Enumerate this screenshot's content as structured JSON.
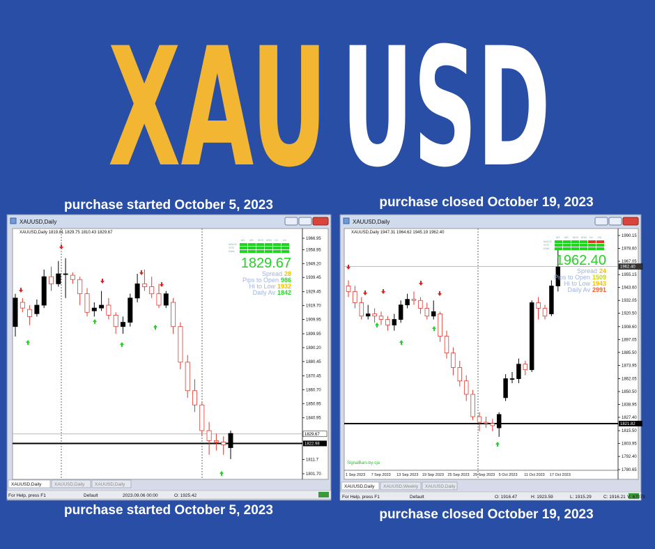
{
  "header": {
    "title_left": "XAU",
    "title_right": "USD"
  },
  "panels": [
    {
      "caption_top": "purchase started October 5, 2023",
      "caption_bottom": "purchase started October 5, 2023",
      "window_title": "XAUUSD,Daily",
      "ohlc_header": "XAUUSD,Daily  1819.81 1829.75 1810.43 1829.67",
      "ylim": [
        1801.7,
        1966.95
      ],
      "yticks": [
        1966.95,
        1958.95,
        {
          "value": 1949.2,
          "label": "1949.20"
        },
        1939.45,
        1929.45,
        {
          "value": 1919.7,
          "label": "1919.70"
        },
        1909.95,
        1899.95,
        {
          "value": 1890.2,
          "label": "1890.20"
        },
        1880.45,
        1870.45,
        {
          "value": 1860.7,
          "label": "1860.70"
        },
        1850.95,
        1840.95,
        1811.7,
        {
          "value": 1801.7,
          "label": "1801.70"
        }
      ],
      "bid_line": 1829.67,
      "level_line": 1822.98,
      "candles": [
        [
          1905,
          1928,
          1898,
          1925
        ],
        [
          1922,
          1925,
          1915,
          1918
        ],
        [
          1917,
          1920,
          1906,
          1912
        ],
        [
          1914,
          1924,
          1912,
          1920
        ],
        [
          1920,
          1945,
          1918,
          1940
        ],
        [
          1940,
          1947,
          1930,
          1935
        ],
        [
          1935,
          1951,
          1933,
          1942
        ],
        [
          1942,
          1953,
          1925,
          1942
        ],
        [
          1941,
          1943,
          1935,
          1938
        ],
        [
          1938,
          1940,
          1920,
          1928
        ],
        [
          1928,
          1932,
          1912,
          1915
        ],
        [
          1916,
          1922,
          1912,
          1918
        ],
        [
          1918,
          1930,
          1916,
          1920
        ],
        [
          1920,
          1925,
          1910,
          1913
        ],
        [
          1913,
          1915,
          1900,
          1905
        ],
        [
          1905,
          1912,
          1900,
          1908
        ],
        [
          1908,
          1928,
          1905,
          1925
        ],
        [
          1925,
          1942,
          1922,
          1935
        ],
        [
          1935,
          1945,
          1930,
          1933
        ],
        [
          1933,
          1940,
          1925,
          1928
        ],
        [
          1928,
          1935,
          1918,
          1920
        ],
        [
          1920,
          1930,
          1918,
          1928
        ],
        [
          1922,
          1925,
          1900,
          1905
        ],
        [
          1905,
          1908,
          1875,
          1880
        ],
        [
          1880,
          1885,
          1855,
          1860
        ],
        [
          1860,
          1868,
          1845,
          1850
        ],
        [
          1850,
          1852,
          1828,
          1832
        ],
        [
          1832,
          1838,
          1815,
          1825
        ],
        [
          1825,
          1830,
          1818,
          1824
        ],
        [
          1824,
          1828,
          1815,
          1822
        ],
        [
          1820,
          1832,
          1812,
          1830
        ]
      ],
      "tf_labels": [
        "M1",
        "M5",
        "M15",
        "M30",
        "H1",
        "H4"
      ],
      "ind_labels": [
        "MACD",
        "STR",
        "EMA"
      ],
      "info": {
        "price": "1829.67",
        "rows": [
          {
            "label": "Spread",
            "value": "28",
            "color": "#f0c000"
          },
          {
            "label": "Pips to Open",
            "value": "986",
            "color": "#22dd22"
          },
          {
            "label": "Hi to Low",
            "value": "1932",
            "color": "#f0c000"
          },
          {
            "label": "Daily Av",
            "value": "1842",
            "color": "#22dd22"
          }
        ]
      },
      "tabs": [
        "XAUUSD,Daily",
        "XAUUSD,Daily",
        "XAUUSD,Daily"
      ],
      "status": [
        "For Help, press F1",
        "Default",
        "2023.09.06 00:00",
        "O: 1925.42"
      ]
    },
    {
      "caption_top": "purchase closed October 19, 2023",
      "caption_bottom": "purchase closed October 19, 2023",
      "window_title": "XAUUSD,Daily",
      "ohlc_header": "XAUUSD,Daily  1947.31 1964.62 1945.19 1962.40",
      "ylim": [
        1780.65,
        1990.15
      ],
      "yticks": [
        1990.15,
        {
          "value": 1978.6,
          "label": "1978.60"
        },
        1967.05,
        1955.15,
        {
          "value": 1943.6,
          "label": "1943.60"
        },
        1932.05,
        {
          "value": 1920.5,
          "label": "1920.50"
        },
        {
          "value": 1908.6,
          "label": "1908.60"
        },
        1897.05,
        {
          "value": 1885.5,
          "label": "1885.50"
        },
        1873.95,
        1862.05,
        {
          "value": 1850.5,
          "label": "1850.50"
        },
        1838.95,
        {
          "value": 1827.4,
          "label": "1827.40"
        },
        {
          "value": 1815.5,
          "label": "1815.50"
        },
        1803.95,
        {
          "value": 1792.4,
          "label": "1792.40"
        },
        1780.65
      ],
      "bid_line": {
        "value": 1962.4,
        "label": "1962.40"
      },
      "level_line": 1821.82,
      "dates": [
        "1 Sep 2023",
        "7 Sep 2023",
        "13 Sep 2023",
        "19 Sep 2023",
        "25 Sep 2023",
        "29 Sep 2023",
        "5 Oct 2023",
        "11 Oct 2023",
        "17 Oct 2023"
      ],
      "candles": [
        [
          1945,
          1950,
          1935,
          1940
        ],
        [
          1940,
          1945,
          1925,
          1930
        ],
        [
          1930,
          1935,
          1915,
          1918
        ],
        [
          1918,
          1928,
          1915,
          1920
        ],
        [
          1920,
          1925,
          1912,
          1918
        ],
        [
          1918,
          1922,
          1910,
          1915
        ],
        [
          1915,
          1918,
          1905,
          1910
        ],
        [
          1910,
          1920,
          1905,
          1915
        ],
        [
          1915,
          1932,
          1912,
          1928
        ],
        [
          1928,
          1938,
          1925,
          1933
        ],
        [
          1933,
          1940,
          1928,
          1932
        ],
        [
          1932,
          1935,
          1920,
          1925
        ],
        [
          1925,
          1930,
          1915,
          1918
        ],
        [
          1918,
          1932,
          1915,
          1922
        ],
        [
          1920,
          1922,
          1895,
          1900
        ],
        [
          1900,
          1905,
          1880,
          1885
        ],
        [
          1885,
          1890,
          1865,
          1872
        ],
        [
          1872,
          1878,
          1855,
          1860
        ],
        [
          1860,
          1865,
          1842,
          1848
        ],
        [
          1848,
          1852,
          1825,
          1828
        ],
        [
          1828,
          1832,
          1815,
          1823
        ],
        [
          1823,
          1828,
          1818,
          1822
        ],
        [
          1822,
          1826,
          1815,
          1820
        ],
        [
          1818,
          1832,
          1810,
          1830
        ],
        [
          1845,
          1866,
          1842,
          1862
        ],
        [
          1862,
          1868,
          1858,
          1862
        ],
        [
          1862,
          1880,
          1858,
          1875
        ],
        [
          1875,
          1878,
          1865,
          1870
        ],
        [
          1870,
          1932,
          1868,
          1930
        ],
        [
          1930,
          1935,
          1915,
          1925
        ],
        [
          1925,
          1928,
          1915,
          1918
        ],
        [
          1920,
          1950,
          1918,
          1945
        ],
        [
          1945,
          1978,
          1940,
          1962
        ]
      ],
      "tf_labels": [
        "M1",
        "M5",
        "M15",
        "M30",
        "H1",
        "H4"
      ],
      "ind_labels": [
        "MACD",
        "STR",
        "EMA"
      ],
      "info": {
        "price": "1962.40",
        "rows": [
          {
            "label": "Spread",
            "value": "24",
            "color": "#f0c000"
          },
          {
            "label": "Pips to Open",
            "value": "1509",
            "color": "#c8d800"
          },
          {
            "label": "Hi to Low",
            "value": "1943",
            "color": "#f0c000"
          },
          {
            "label": "Daily Av",
            "value": "2991",
            "color": "#ff5a1e"
          }
        ]
      },
      "footer_note": "SignalBars-by-cja",
      "tabs": [
        "XAUUSD,Daily",
        "XAUUSD,Weekly",
        "XAUUSD,Daily"
      ],
      "status": [
        "For Help, press F1",
        "Default",
        "O: 1916.47",
        "H: 1923.59",
        "L: 1915.29",
        "C: 1916.21",
        "V: 67079"
      ]
    }
  ]
}
